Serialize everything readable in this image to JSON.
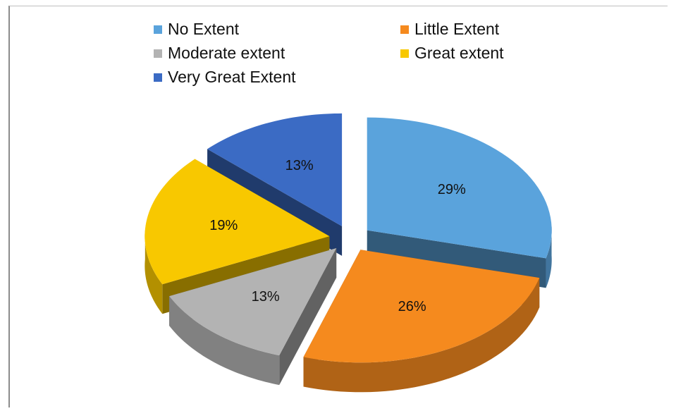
{
  "chart_data": {
    "type": "pie",
    "style": "3d-exploded",
    "title": "",
    "legend_placement": "top",
    "slices": [
      {
        "name": "No Extent",
        "value": 29,
        "label": "29%",
        "color": "#5aa3dc"
      },
      {
        "name": "Little Extent",
        "value": 26,
        "label": "26%",
        "color": "#f58a1e"
      },
      {
        "name": "Moderate extent",
        "value": 13,
        "label": "13%",
        "color": "#b3b3b3"
      },
      {
        "name": "Great extent",
        "value": 19,
        "label": "19%",
        "color": "#f8c800"
      },
      {
        "name": "Very Great Extent",
        "value": 13,
        "label": "13%",
        "color": "#3b6bc4"
      }
    ]
  }
}
